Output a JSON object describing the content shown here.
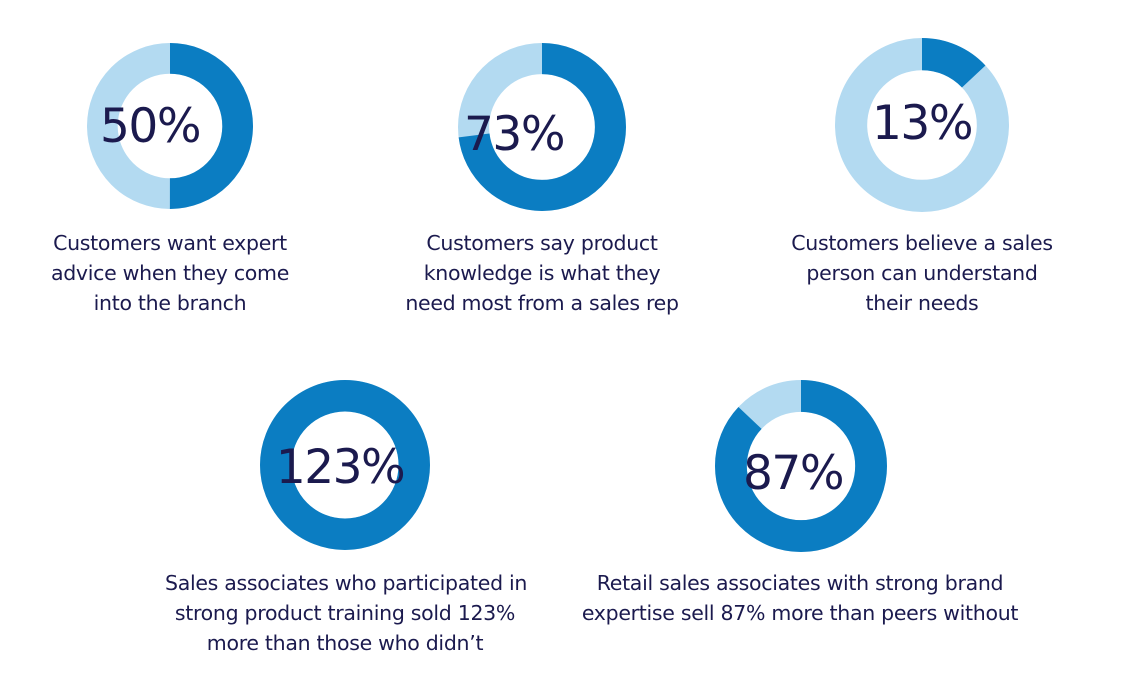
{
  "palette": {
    "filled": "#0b7dc2",
    "remainder": "#b3daf1",
    "text": "#1b1a4e"
  },
  "chart_data": [
    {
      "type": "pie",
      "value": 50,
      "label": "50%",
      "caption": [
        "Customers want expert",
        "advice when they come",
        "into the branch"
      ]
    },
    {
      "type": "pie",
      "value": 73,
      "label": "73%",
      "caption": [
        "Customers say product",
        "knowledge is what they",
        "need most from a sales rep"
      ]
    },
    {
      "type": "pie",
      "value": 13,
      "label": "13%",
      "caption": [
        "Customers believe a sales",
        "person can understand",
        "their needs"
      ]
    },
    {
      "type": "pie",
      "value": 123,
      "label": "123%",
      "caption": [
        "Sales associates who participated in",
        "strong product training sold 123%",
        "more than those who didn’t"
      ]
    },
    {
      "type": "pie",
      "value": 87,
      "label": "87%",
      "caption": [
        "Retail sales associates with strong brand",
        "expertise sell 87% more than peers without"
      ]
    }
  ]
}
